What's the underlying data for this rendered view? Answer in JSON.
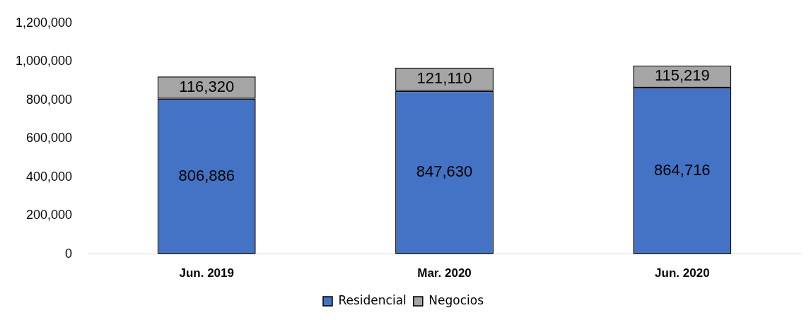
{
  "chart_data": {
    "type": "bar",
    "stacked": true,
    "categories": [
      "Jun. 2019",
      "Mar. 2020",
      "Jun. 2020"
    ],
    "series": [
      {
        "name": "Residencial",
        "color": "#4472c4",
        "values": [
          806886,
          847630,
          864716
        ],
        "value_labels": [
          "806,886",
          "847,630",
          "864,716"
        ]
      },
      {
        "name": "Negocios",
        "color": "#a5a5a5",
        "values": [
          116320,
          121110,
          115219
        ],
        "value_labels": [
          "116,320",
          "121,110",
          "115,219"
        ]
      }
    ],
    "ylim": [
      0,
      1200000
    ],
    "yticks": [
      {
        "value": 0,
        "label": "0"
      },
      {
        "value": 200000,
        "label": "200,000"
      },
      {
        "value": 400000,
        "label": "400,000"
      },
      {
        "value": 600000,
        "label": "600,000"
      },
      {
        "value": 800000,
        "label": "800,000"
      },
      {
        "value": 1000000,
        "label": "1,000,000"
      },
      {
        "value": 1200000,
        "label": "1,200,000"
      }
    ],
    "legend": "bottom",
    "grid": false
  }
}
